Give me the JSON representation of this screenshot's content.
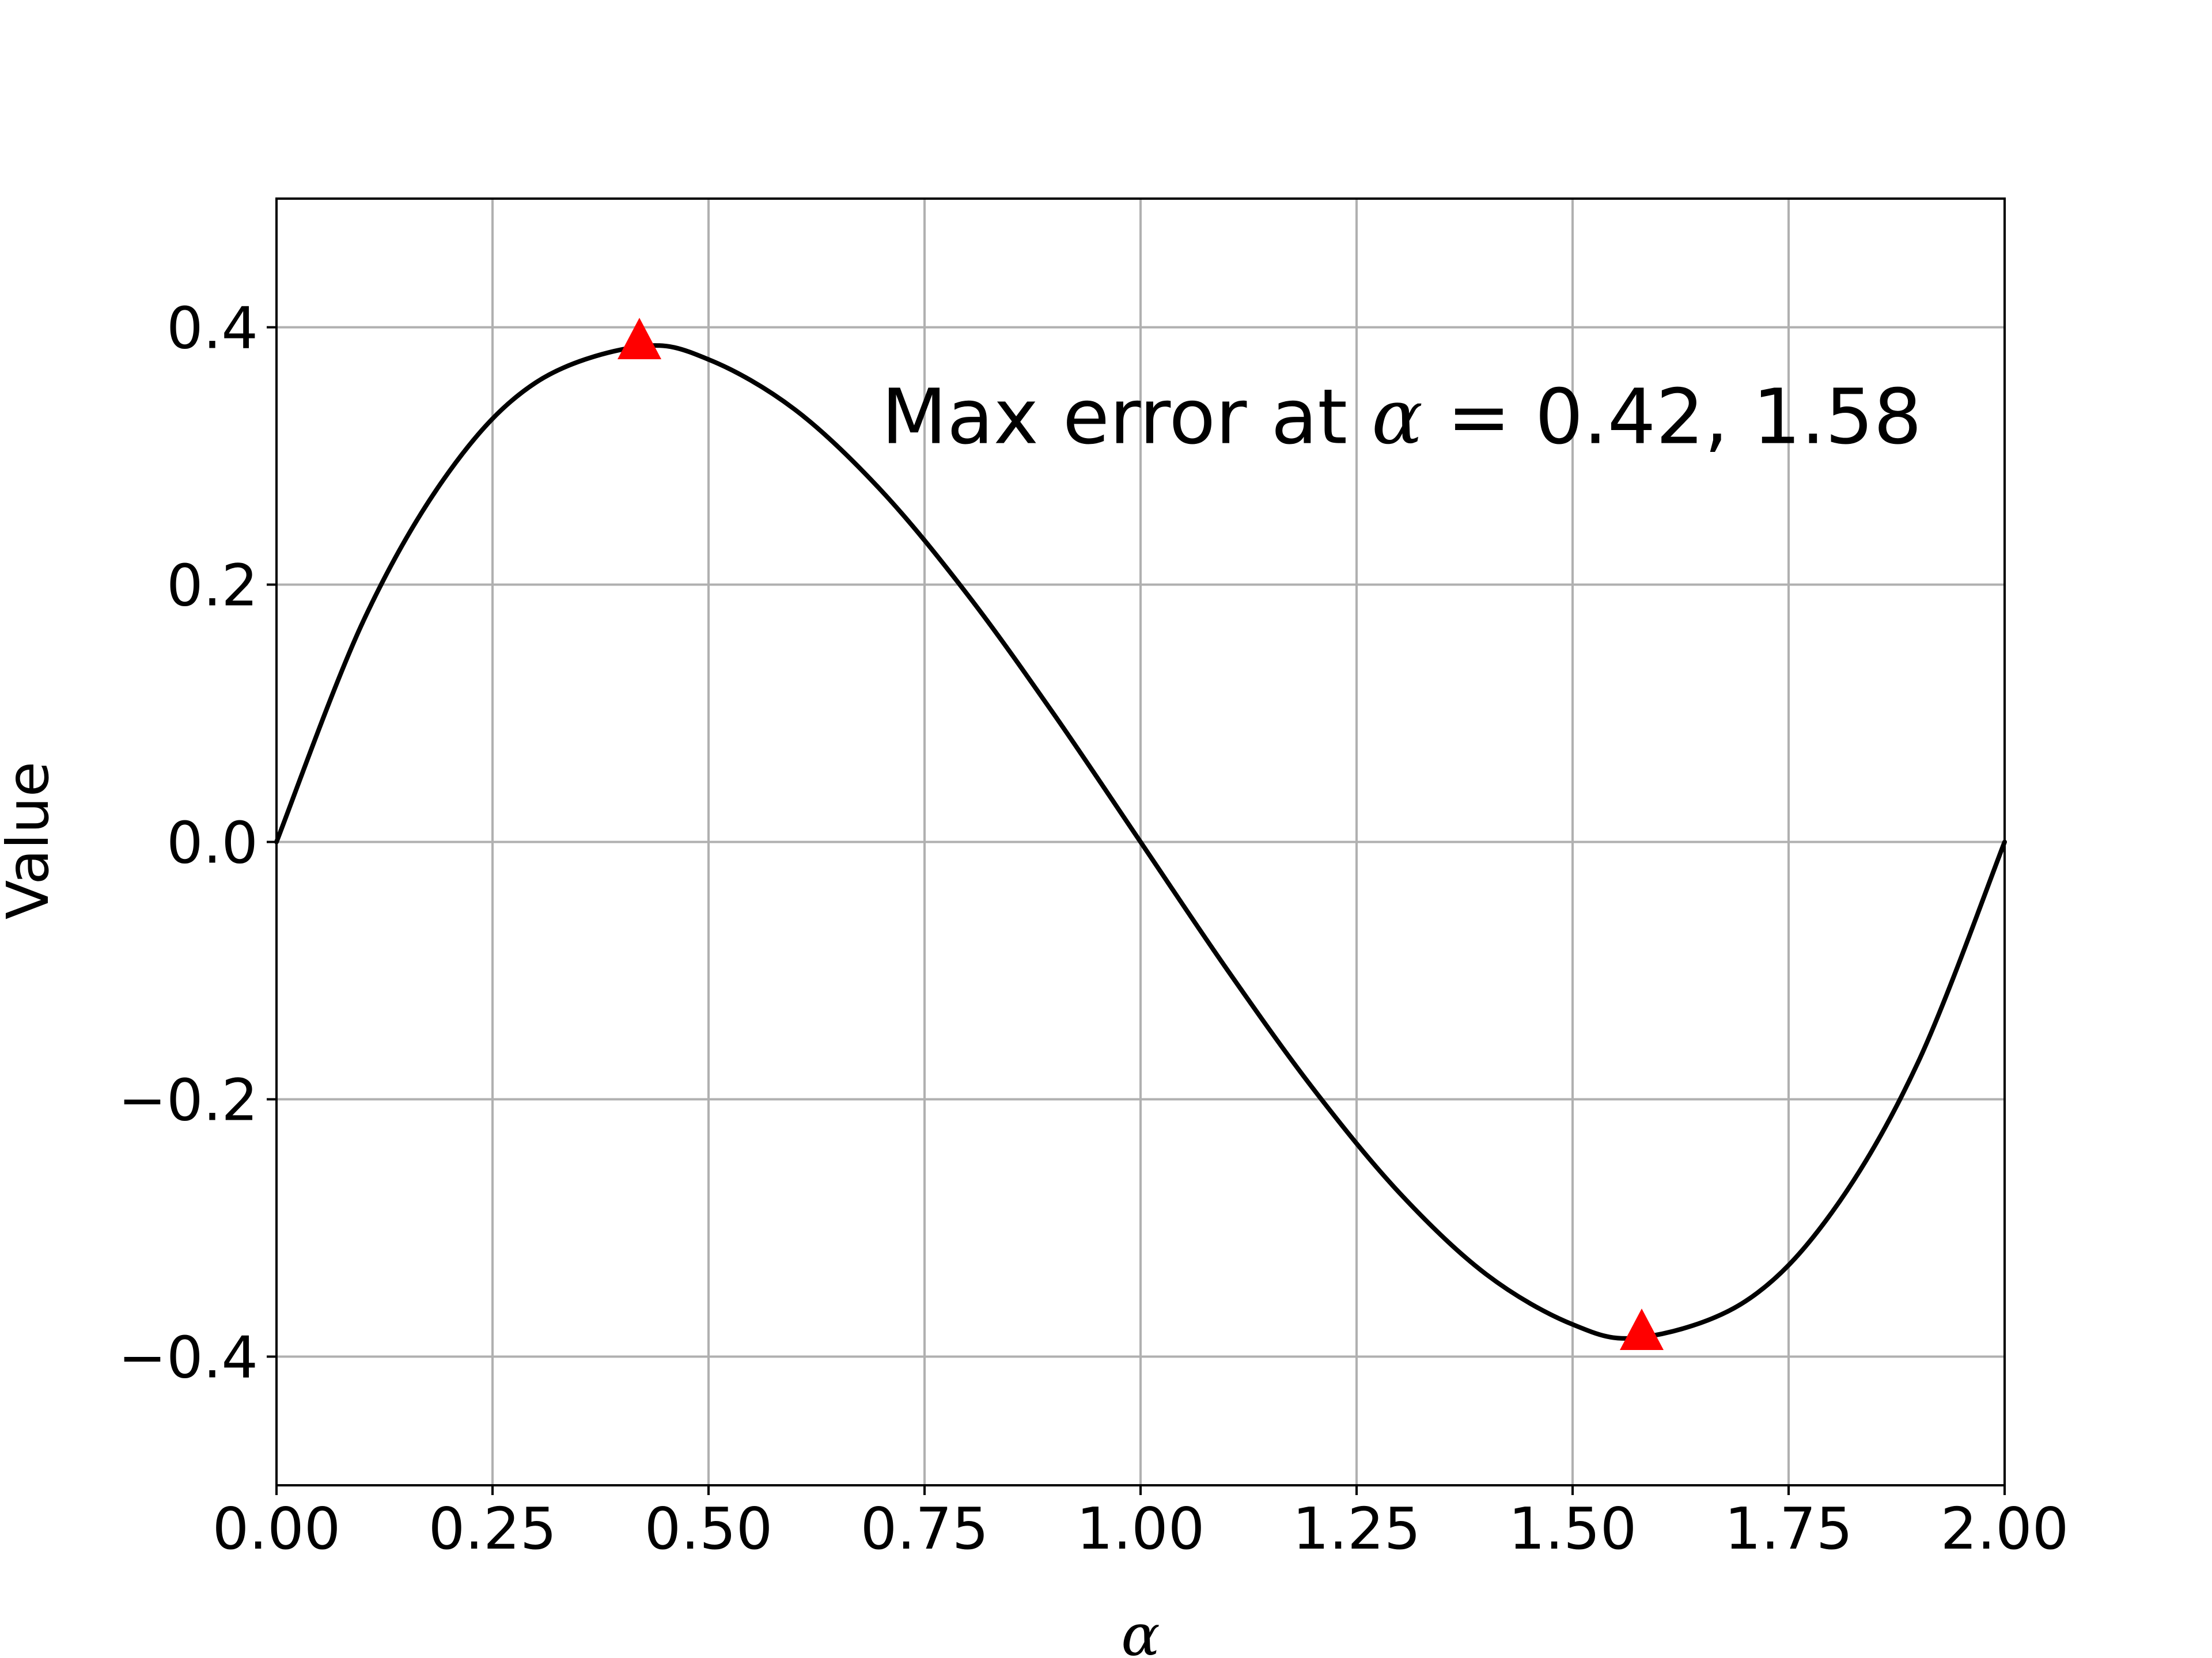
{
  "chart_data": {
    "type": "line",
    "title": "",
    "xlabel": "α",
    "ylabel": "Value",
    "xlim": [
      0.0,
      2.0
    ],
    "ylim": [
      -0.5,
      0.5
    ],
    "grid": true,
    "legend": "none",
    "xticks": [
      0.0,
      0.25,
      0.5,
      0.75,
      1.0,
      1.25,
      1.5,
      1.75,
      2.0
    ],
    "xtick_labels": [
      "0.00",
      "0.25",
      "0.50",
      "0.75",
      "1.00",
      "1.25",
      "1.50",
      "1.75",
      "2.00"
    ],
    "yticks": [
      -0.4,
      -0.2,
      0.0,
      0.2,
      0.4
    ],
    "ytick_labels": [
      "−0.4",
      "−0.2",
      "0.0",
      "0.2",
      "0.4"
    ],
    "series": [
      {
        "color": "#000000",
        "x": [
          0.0,
          0.1,
          0.2,
          0.3,
          0.42,
          0.5,
          0.6,
          0.7,
          0.8,
          0.9,
          1.0,
          1.1,
          1.2,
          1.3,
          1.4,
          1.5,
          1.58,
          1.7,
          1.8,
          1.9,
          2.0
        ],
        "y": [
          0.0,
          0.171,
          0.288,
          0.357,
          0.385,
          0.375,
          0.336,
          0.273,
          0.192,
          0.099,
          0.0,
          -0.099,
          -0.192,
          -0.273,
          -0.336,
          -0.375,
          -0.385,
          -0.357,
          -0.288,
          -0.171,
          0.0
        ]
      }
    ],
    "markers": {
      "color": "#ff0000",
      "shape": "triangle-up",
      "points": [
        {
          "x": 0.42,
          "y": 0.385
        },
        {
          "x": 1.58,
          "y": -0.385
        }
      ]
    },
    "annotation": {
      "prefix": "Max error at ",
      "symbol": "α",
      "suffix": " = 0.42, 1.58",
      "x": 0.7,
      "y": 0.31
    }
  }
}
